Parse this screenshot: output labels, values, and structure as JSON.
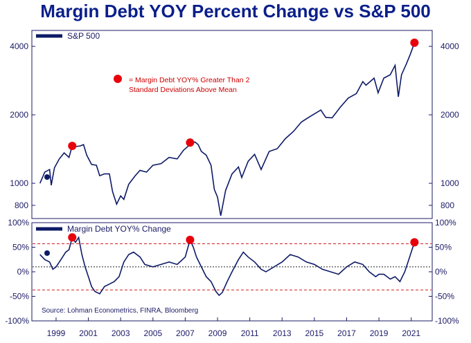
{
  "title": "Margin Debt YOY Percent Change vs S&P 500",
  "colors": {
    "title": "#0a1f8a",
    "line": "#0d1a66",
    "marker": "#e8000b",
    "ref_red": "#d11a1a",
    "ref_black": "#222222"
  },
  "note": {
    "line1": "= Margin Debt YOY% Greater Than 2",
    "line2": "Standard Deviations Above Mean"
  },
  "source": "Source: Lohman Econometrics, FINRA, Bloomberg",
  "chart_data": [
    {
      "type": "line",
      "name": "top-panel",
      "scale": "log",
      "legend": "S&P 500",
      "legend_position": "top-left",
      "y_ticks": [
        800,
        1000,
        2000,
        4000
      ],
      "y_tick_labels": [
        "800",
        "1000",
        "2000",
        "4000"
      ],
      "xlim": [
        1997.5,
        2022.3
      ],
      "ylim": [
        700,
        4700
      ],
      "series": [
        {
          "x": [
            1998.0,
            1998.3,
            1998.6,
            1998.7,
            1998.9,
            1999.2,
            1999.5,
            1999.8,
            2000.0,
            2000.2,
            2000.5,
            2000.7,
            2000.9,
            2001.2,
            2001.5,
            2001.7,
            2002.0,
            2002.3,
            2002.5,
            2002.75,
            2003.0,
            2003.2,
            2003.5,
            2003.9,
            2004.2,
            2004.6,
            2005.0,
            2005.5,
            2006.0,
            2006.5,
            2006.9,
            2007.3,
            2007.6,
            2007.8,
            2008.0,
            2008.3,
            2008.6,
            2008.8,
            2009.0,
            2009.2,
            2009.5,
            2009.9,
            2010.3,
            2010.5,
            2010.9,
            2011.3,
            2011.7,
            2012.2,
            2012.7,
            2013.2,
            2013.7,
            2014.2,
            2014.7,
            2015.4,
            2015.7,
            2016.1,
            2016.6,
            2017.1,
            2017.6,
            2018.0,
            2018.2,
            2018.7,
            2018.95,
            2019.3,
            2019.7,
            2020.0,
            2020.2,
            2020.4,
            2020.7,
            2020.95,
            2021.2
          ],
          "y": [
            1000,
            1120,
            1150,
            980,
            1170,
            1280,
            1360,
            1300,
            1460,
            1450,
            1460,
            1480,
            1330,
            1210,
            1200,
            1080,
            1100,
            1100,
            920,
            810,
            880,
            850,
            990,
            1080,
            1140,
            1120,
            1200,
            1220,
            1300,
            1280,
            1400,
            1480,
            1520,
            1480,
            1380,
            1330,
            1200,
            940,
            870,
            720,
            930,
            1100,
            1180,
            1060,
            1250,
            1340,
            1150,
            1380,
            1420,
            1570,
            1690,
            1860,
            1960,
            2100,
            1950,
            1940,
            2160,
            2370,
            2480,
            2800,
            2700,
            2900,
            2500,
            2900,
            3000,
            3300,
            2400,
            3000,
            3350,
            3700,
            4150
          ]
        }
      ],
      "markers": [
        {
          "x": 2000.0,
          "y": 1460
        },
        {
          "x": 2007.3,
          "y": 1510
        },
        {
          "x": 2021.2,
          "y": 4150
        }
      ]
    },
    {
      "type": "line",
      "name": "bottom-panel",
      "legend": "Margin Debt YOY% Change",
      "legend_position": "top-left",
      "y_ticks": [
        -100,
        -50,
        0,
        50,
        100
      ],
      "y_tick_labels": [
        "-100%",
        "-50%",
        "0%",
        "50%",
        "100%"
      ],
      "x_ticks": [
        1999,
        2001,
        2003,
        2005,
        2007,
        2009,
        2011,
        2013,
        2015,
        2017,
        2019,
        2021
      ],
      "xlim": [
        1997.5,
        2022.3
      ],
      "ylim": [
        -100,
        100
      ],
      "reference_lines": [
        {
          "y": 57,
          "style": "dashed",
          "color": "red"
        },
        {
          "y": 10,
          "style": "dotted",
          "color": "black"
        },
        {
          "y": -37,
          "style": "dashed",
          "color": "red"
        }
      ],
      "series": [
        {
          "x": [
            1998.0,
            1998.3,
            1998.6,
            1998.8,
            1999.0,
            1999.3,
            1999.6,
            1999.8,
            2000.0,
            2000.2,
            2000.4,
            2000.6,
            2000.8,
            2001.0,
            2001.2,
            2001.4,
            2001.7,
            2002.0,
            2002.3,
            2002.6,
            2002.9,
            2003.2,
            2003.5,
            2003.8,
            2004.2,
            2004.5,
            2005.0,
            2005.5,
            2006.0,
            2006.5,
            2007.0,
            2007.3,
            2007.5,
            2007.7,
            2008.0,
            2008.3,
            2008.6,
            2008.9,
            2009.1,
            2009.3,
            2009.6,
            2009.9,
            2010.3,
            2010.6,
            2010.9,
            2011.3,
            2011.7,
            2012.0,
            2012.5,
            2013.0,
            2013.5,
            2014.0,
            2014.5,
            2015.0,
            2015.5,
            2016.0,
            2016.5,
            2017.0,
            2017.5,
            2018.0,
            2018.4,
            2018.8,
            2019.0,
            2019.3,
            2019.7,
            2020.0,
            2020.3,
            2020.6,
            2020.9,
            2021.1,
            2021.3
          ],
          "y": [
            35,
            25,
            20,
            5,
            10,
            25,
            40,
            45,
            70,
            60,
            70,
            35,
            10,
            -10,
            -30,
            -40,
            -45,
            -30,
            -25,
            -20,
            -10,
            20,
            35,
            40,
            30,
            15,
            10,
            15,
            20,
            15,
            30,
            65,
            50,
            30,
            10,
            -10,
            -20,
            -40,
            -48,
            -42,
            -20,
            0,
            25,
            40,
            30,
            20,
            5,
            0,
            10,
            20,
            35,
            30,
            20,
            15,
            5,
            0,
            -5,
            10,
            20,
            15,
            0,
            -10,
            -5,
            -5,
            -15,
            -10,
            -20,
            0,
            30,
            50,
            62
          ]
        }
      ],
      "markers": [
        {
          "x": 2000.0,
          "y": 70
        },
        {
          "x": 2007.3,
          "y": 65
        },
        {
          "x": 2021.2,
          "y": 60
        }
      ]
    }
  ]
}
